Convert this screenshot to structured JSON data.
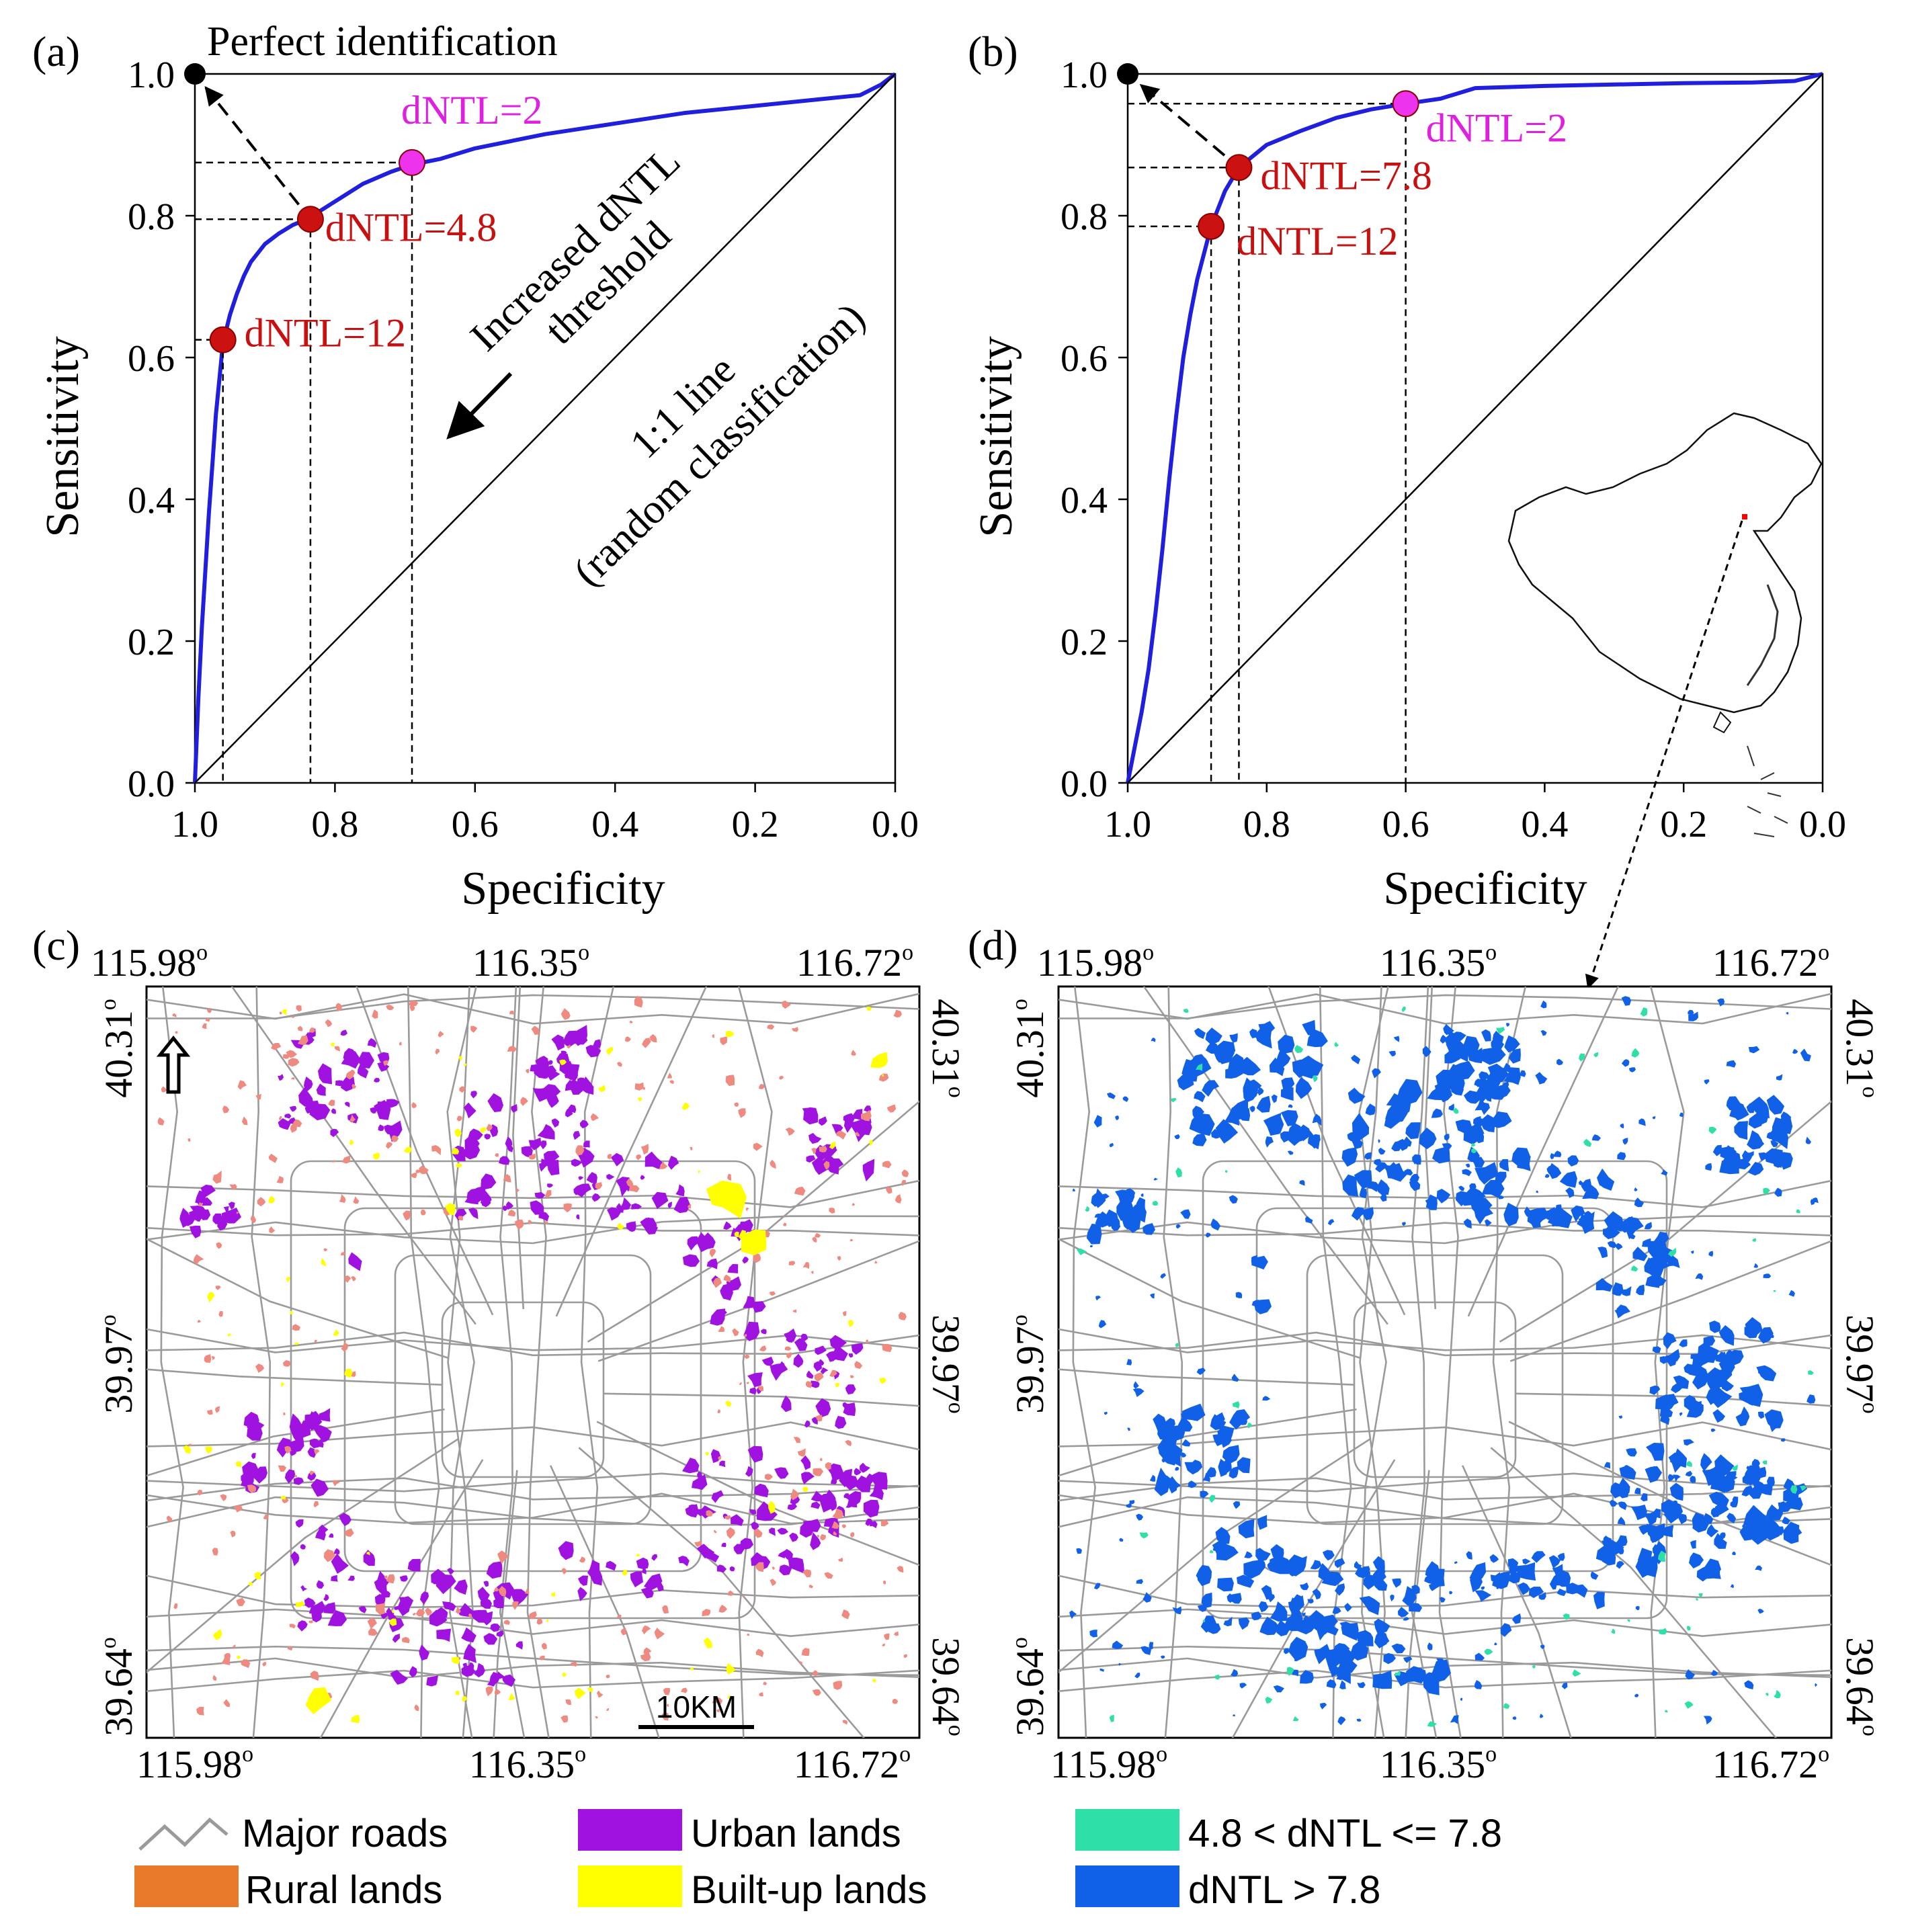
{
  "panel_labels": {
    "a": "(a)",
    "b": "(b)",
    "c": "(c)",
    "d": "(d)"
  },
  "colors": {
    "roc_curve": "#1f1fdd",
    "point_red": "#cc1111",
    "point_magenta": "#ee33ee",
    "label_red": "#c81010",
    "label_magenta": "#e020e0",
    "urban": "#a012e0",
    "rural": "#e87a2a",
    "rural_map": "#ee8a80",
    "builtup": "#ffff00",
    "low_dntl": "#2ee0a8",
    "high_dntl": "#1060e8",
    "roads": "#9a9a9a"
  },
  "chart_data": [
    {
      "type": "line",
      "panel": "(a)",
      "xlabel": "Specificity",
      "ylabel": "Sensitivity",
      "xlim": [
        1.0,
        0.0
      ],
      "ylim": [
        0.0,
        1.0
      ],
      "x_reversed": true,
      "xticks": [
        "1.0",
        "0.8",
        "0.6",
        "0.4",
        "0.2",
        "0.0"
      ],
      "yticks": [
        "0.0",
        "0.2",
        "0.4",
        "0.6",
        "0.8",
        "1.0"
      ],
      "series": [
        {
          "kind": "roc",
          "x": [
            1.0,
            0.995,
            0.99,
            0.985,
            0.98,
            0.975,
            0.97,
            0.965,
            0.96,
            0.95,
            0.94,
            0.93,
            0.92,
            0.9,
            0.88,
            0.86,
            0.84,
            0.8,
            0.76,
            0.72,
            0.69,
            0.65,
            0.6,
            0.5,
            0.4,
            0.3,
            0.2,
            0.1,
            0.05,
            0.02,
            0.0
          ],
          "y": [
            0.0,
            0.12,
            0.22,
            0.3,
            0.38,
            0.45,
            0.52,
            0.57,
            0.62,
            0.66,
            0.69,
            0.715,
            0.735,
            0.76,
            0.775,
            0.787,
            0.795,
            0.82,
            0.845,
            0.862,
            0.872,
            0.88,
            0.895,
            0.915,
            0.93,
            0.945,
            0.955,
            0.965,
            0.97,
            0.985,
            1.0
          ]
        },
        {
          "kind": "reference",
          "x": [
            1.0,
            0.0
          ],
          "y": [
            0.0,
            1.0
          ]
        }
      ],
      "points": [
        {
          "label": "dNTL=12",
          "x": 0.96,
          "y": 0.625,
          "color": "red"
        },
        {
          "label": "dNTL=4.8",
          "x": 0.835,
          "y": 0.795,
          "color": "red"
        },
        {
          "label": "dNTL=2",
          "x": 0.69,
          "y": 0.875,
          "color": "magenta"
        }
      ],
      "perfect_point": {
        "label": "Perfect identification",
        "x": 1.0,
        "y": 1.0
      },
      "annotations": {
        "increase": [
          "Increased dNTL",
          "threshold"
        ],
        "diag": [
          "1:1 line",
          "(random classification)"
        ]
      }
    },
    {
      "type": "line",
      "panel": "(b)",
      "xlabel": "Specificity",
      "ylabel": "Sensitivity",
      "xlim": [
        1.0,
        0.0
      ],
      "ylim": [
        0.0,
        1.0
      ],
      "x_reversed": true,
      "xticks": [
        "1.0",
        "0.8",
        "0.6",
        "0.4",
        "0.2",
        "0.0"
      ],
      "yticks": [
        "0.0",
        "0.2",
        "0.4",
        "0.6",
        "0.8",
        "1.0"
      ],
      "series": [
        {
          "kind": "roc",
          "x": [
            1.0,
            0.99,
            0.98,
            0.97,
            0.96,
            0.95,
            0.94,
            0.93,
            0.92,
            0.91,
            0.9,
            0.88,
            0.86,
            0.84,
            0.8,
            0.75,
            0.7,
            0.65,
            0.6,
            0.55,
            0.5,
            0.4,
            0.3,
            0.2,
            0.1,
            0.04,
            0.0
          ],
          "y": [
            0.0,
            0.05,
            0.1,
            0.16,
            0.24,
            0.33,
            0.43,
            0.52,
            0.6,
            0.66,
            0.71,
            0.785,
            0.835,
            0.868,
            0.9,
            0.92,
            0.938,
            0.95,
            0.958,
            0.965,
            0.98,
            0.983,
            0.985,
            0.987,
            0.988,
            0.99,
            1.0
          ]
        },
        {
          "kind": "reference",
          "x": [
            1.0,
            0.0
          ],
          "y": [
            0.0,
            1.0
          ]
        }
      ],
      "points": [
        {
          "label": "dNTL=12",
          "x": 0.88,
          "y": 0.785,
          "color": "red"
        },
        {
          "label": "dNTL=7.8",
          "x": 0.84,
          "y": 0.868,
          "color": "red"
        },
        {
          "label": "dNTL=2",
          "x": 0.6,
          "y": 0.958,
          "color": "magenta"
        }
      ],
      "perfect_point": {
        "label": "",
        "x": 1.0,
        "y": 1.0
      }
    }
  ],
  "maps": {
    "lon_ticks": [
      "115.98",
      "116.35",
      "116.72"
    ],
    "lat_ticks": [
      "40.31",
      "39.97",
      "39.64"
    ],
    "degree": "o",
    "scalebar": "10KM"
  },
  "legend": {
    "roads": "Major roads",
    "urban": "Urban lands",
    "rural": "Rural lands",
    "builtup": "Built-up lands",
    "low": "4.8 < dNTL <= 7.8",
    "high": "dNTL > 7.8"
  }
}
